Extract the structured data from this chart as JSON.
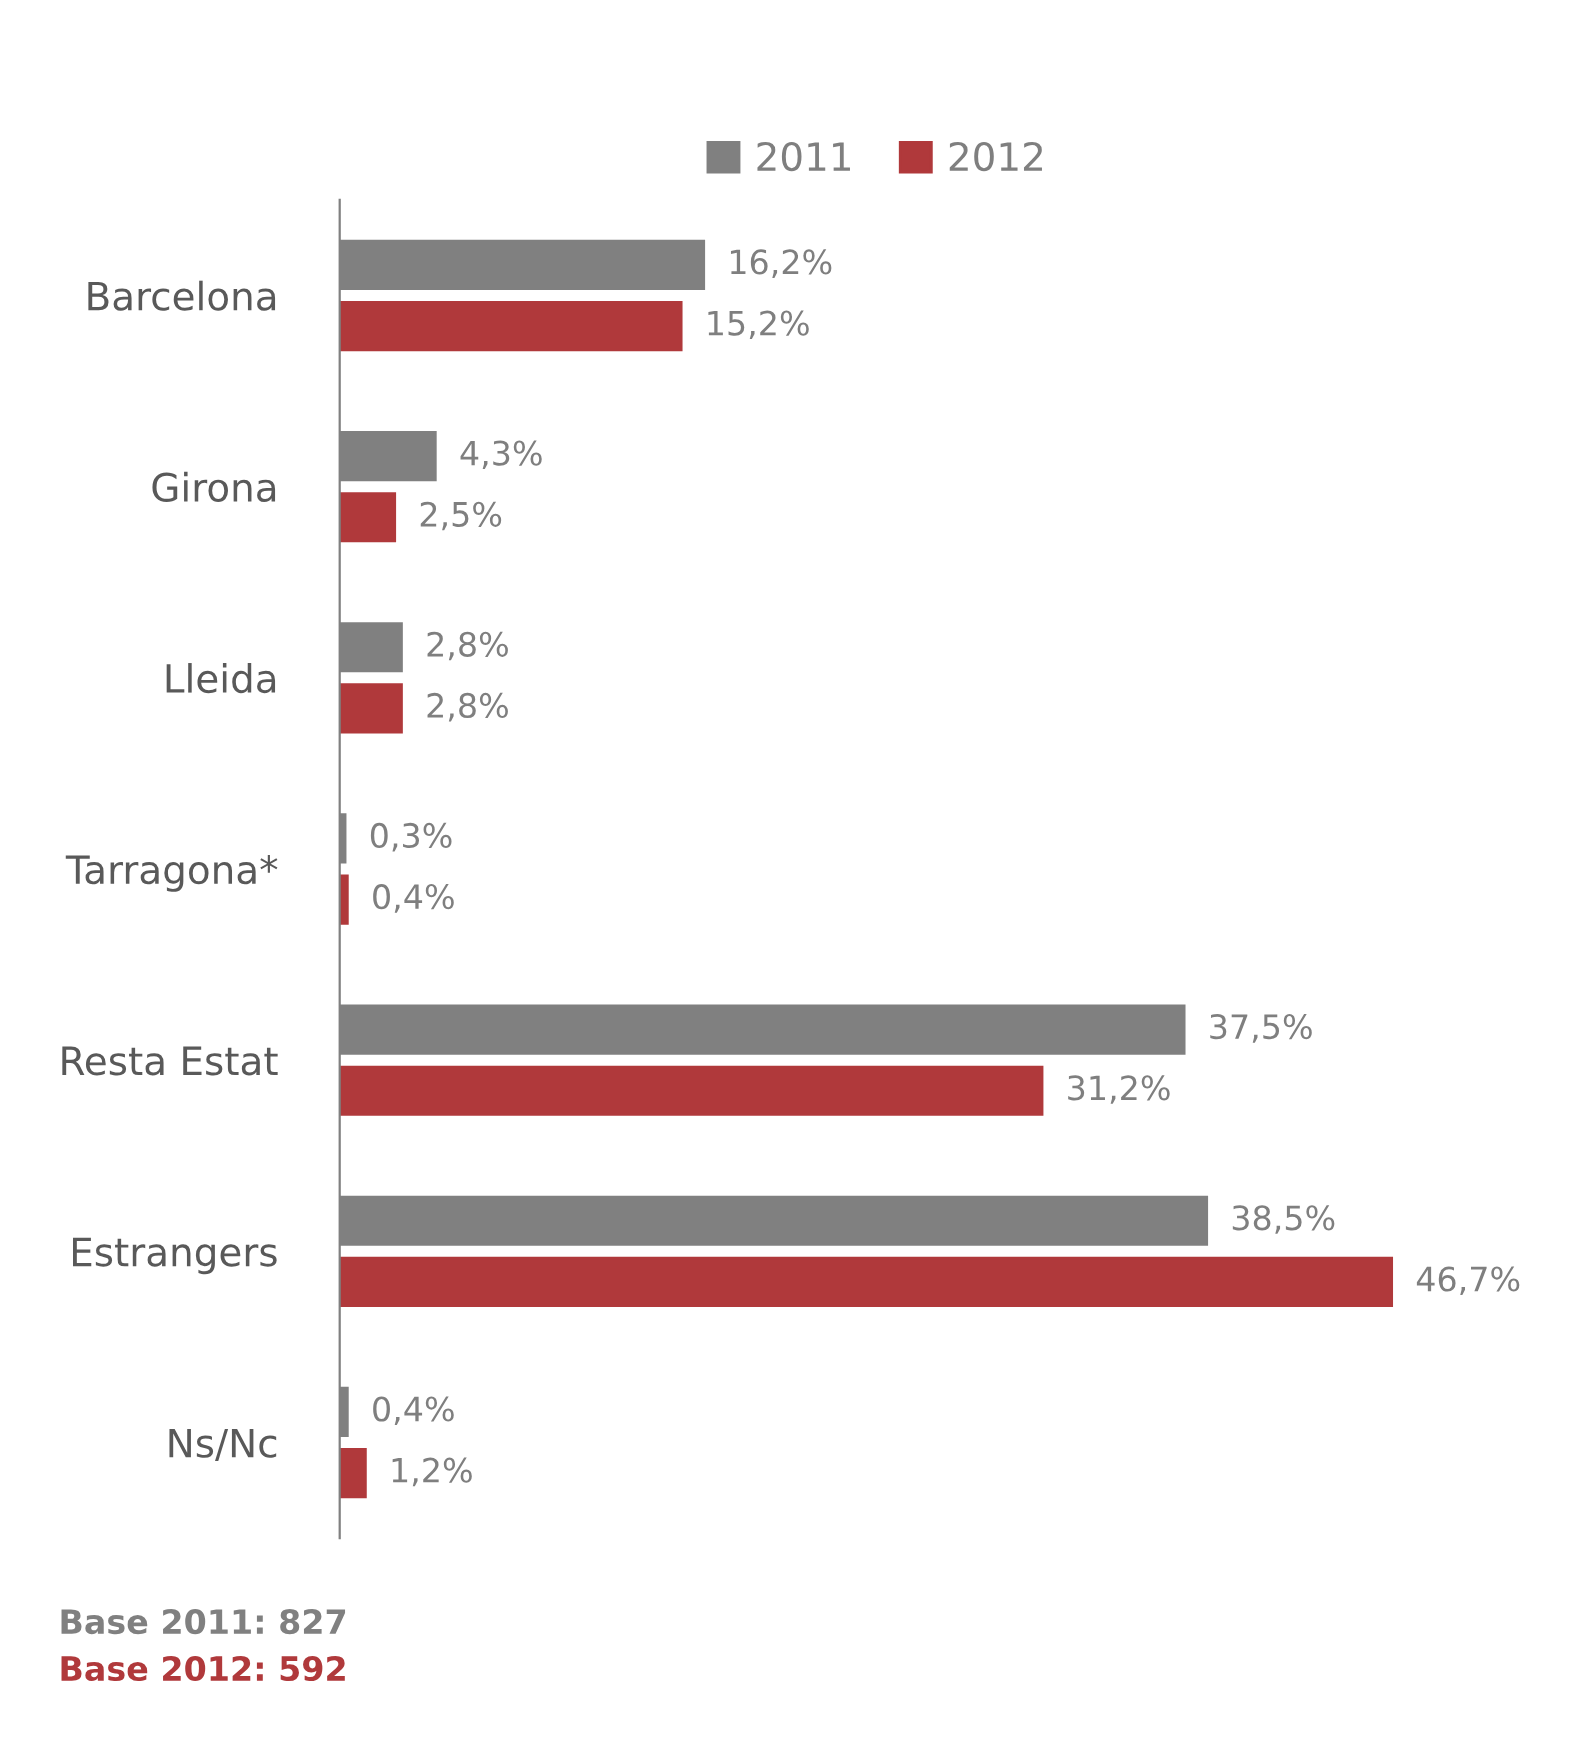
{
  "chart_data": {
    "type": "bar",
    "orientation": "horizontal",
    "categories": [
      "Barcelona",
      "Girona",
      "Lleida",
      "Tarragona*",
      "Resta Estat",
      "Estrangers",
      "Ns/Nc"
    ],
    "series": [
      {
        "name": "2011",
        "color": "#808080",
        "values": [
          16.2,
          4.3,
          2.8,
          0.3,
          37.5,
          38.5,
          0.4
        ],
        "value_labels": [
          "16,2%",
          "4,3%",
          "2,8%",
          "0,3%",
          "37,5%",
          "38,5%",
          "0,4%"
        ]
      },
      {
        "name": "2012",
        "color": "#b0393b",
        "values": [
          15.2,
          2.5,
          2.8,
          0.4,
          31.2,
          46.7,
          1.2
        ],
        "value_labels": [
          "15,2%",
          "2,5%",
          "2,8%",
          "0,4%",
          "31,2%",
          "46,7%",
          "1,2%"
        ]
      }
    ],
    "legend": "top",
    "grid": false,
    "annotations": [
      "Base 2011: 827",
      "Base 2012: 592"
    ]
  }
}
